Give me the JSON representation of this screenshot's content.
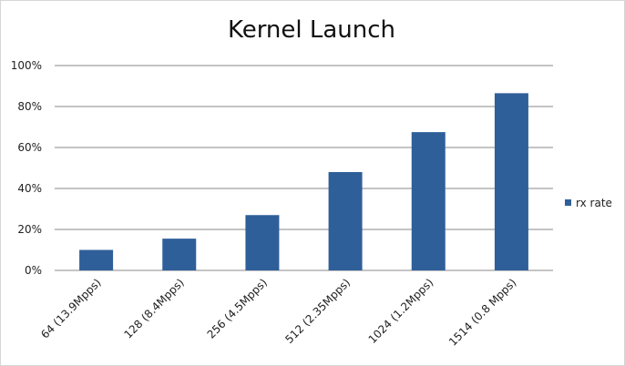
{
  "chart_data": {
    "type": "bar",
    "title": "Kernel Launch",
    "categories": [
      "64 (13.9Mpps)",
      "128 (8.4Mpps)",
      "256 (4.5Mpps)",
      "512 (2.35Mpps)",
      "1024 (1.2Mpps)",
      "1514 (0.8 Mpps)"
    ],
    "series": [
      {
        "name": "rx rate",
        "values": [
          10,
          15.5,
          27,
          48,
          67.5,
          86.5
        ],
        "color": "#2f5f99"
      }
    ],
    "yticks": [
      "0%",
      "20%",
      "40%",
      "60%",
      "80%",
      "100%"
    ],
    "ylim": [
      0,
      100
    ],
    "grid": true,
    "legend_position": "right"
  }
}
